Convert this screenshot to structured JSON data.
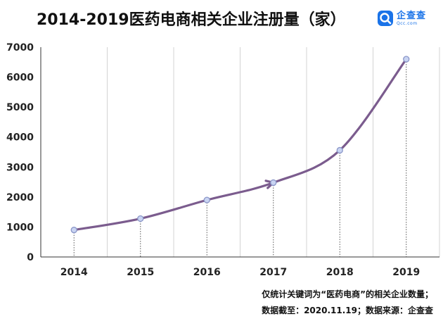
{
  "header": {
    "title": "2014-2019医药电商相关企业注册量（家）"
  },
  "logo": {
    "name_cn": "企查查",
    "name_en": "Qcc.com",
    "icon": "qcc-logo-icon",
    "color": "#1a73e8"
  },
  "notes": {
    "line1": "仅统计关键词为“医药电商”的相关企业数量；",
    "line2": "数据截至：2020.11.19；数据来源：企查查"
  },
  "colors": {
    "line": "#7b5c8e",
    "marker_fill": "#c9d4f2",
    "marker_stroke": "#8a96c8",
    "grid": "#d3d3d3",
    "axis": "#333333"
  },
  "chart_data": {
    "type": "line",
    "title": "2014-2019医药电商相关企业注册量（家）",
    "xlabel": "",
    "ylabel": "",
    "categories": [
      "2014",
      "2015",
      "2016",
      "2017",
      "2018",
      "2019"
    ],
    "series": [
      {
        "values": [
          900,
          1280,
          1900,
          2480,
          3560,
          6600
        ]
      }
    ],
    "ylim": [
      0,
      7000
    ],
    "yticks": [
      0,
      1000,
      2000,
      3000,
      4000,
      5000,
      6000,
      7000
    ],
    "grid": "vertical",
    "legend": "none"
  }
}
